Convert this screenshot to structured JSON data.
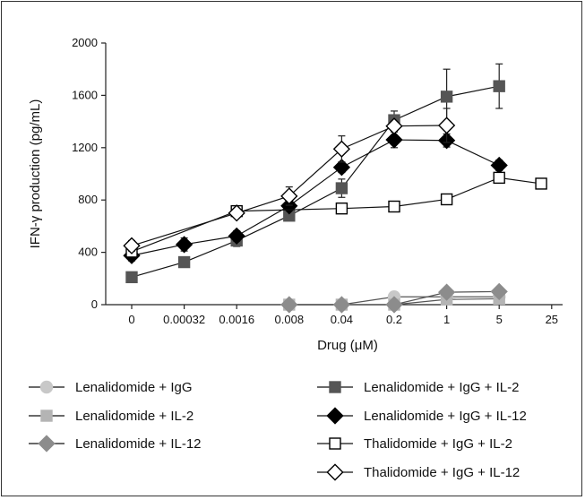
{
  "chart_data": {
    "type": "line",
    "xlabel": "Drug (μM)",
    "ylabel": "IFN-γ production (pg/mL)",
    "categories": [
      "0",
      "0.00032",
      "0.0016",
      "0.008",
      "0.04",
      "0.2",
      "1",
      "5",
      "25"
    ],
    "ylim": [
      0,
      2000
    ],
    "yticks": [
      0,
      400,
      800,
      1200,
      1600,
      2000
    ],
    "grid": false,
    "legend_position": "bottom",
    "series": [
      {
        "name": "Lenalidomide + IgG",
        "marker": "circle",
        "color": "#c8c8c8",
        "stroke": "#c8c8c8",
        "line": "#555555",
        "x": [
          3,
          4,
          5,
          6,
          7
        ],
        "y": [
          0,
          0,
          60,
          60,
          60
        ]
      },
      {
        "name": "Lenalidomide + IL-2",
        "marker": "square",
        "color": "#b4b4b4",
        "stroke": "#b4b4b4",
        "line": "#555555",
        "x": [
          3,
          4,
          5,
          6,
          7
        ],
        "y": [
          0,
          0,
          0,
          40,
          45
        ]
      },
      {
        "name": "Lenalidomide + IL-12",
        "marker": "diamond",
        "color": "#8c8c8c",
        "stroke": "#8c8c8c",
        "line": "#555555",
        "x": [
          3,
          4,
          5,
          6,
          7
        ],
        "y": [
          0,
          0,
          0,
          95,
          100
        ]
      },
      {
        "name": "Lenalidomide + IgG + IL-2",
        "marker": "square",
        "color": "#555555",
        "stroke": "#555555",
        "line": "#111111",
        "x": [
          0,
          1,
          2,
          3,
          4,
          5,
          6,
          7
        ],
        "y": [
          210,
          325,
          490,
          680,
          890,
          1410,
          1590,
          1670
        ],
        "err": [
          0,
          0,
          45,
          0,
          70,
          70,
          210,
          170
        ]
      },
      {
        "name": "Lenalidomide + IgG + IL-12",
        "marker": "diamond",
        "color": "#000000",
        "stroke": "#000000",
        "line": "#111111",
        "x": [
          0,
          1,
          2,
          3,
          4,
          5,
          6,
          7
        ],
        "y": [
          375,
          460,
          525,
          755,
          1050,
          1260,
          1255,
          1065
        ],
        "err": [
          40,
          50,
          40,
          0,
          40,
          60,
          50,
          40
        ]
      },
      {
        "name": "Thalidomide + IgG + IL-2",
        "marker": "square",
        "color": "#ffffff",
        "stroke": "#000000",
        "line": "#111111",
        "x": [
          0,
          2,
          4,
          5,
          6,
          7,
          7.8
        ],
        "y": [
          405,
          715,
          735,
          750,
          805,
          970,
          925
        ],
        "err": [
          0,
          0,
          0,
          40,
          0,
          0,
          0
        ]
      },
      {
        "name": "Thalidomide + IgG + IL-12",
        "marker": "diamond",
        "color": "#ffffff",
        "stroke": "#000000",
        "line": "#111111",
        "x": [
          0,
          2,
          3,
          4,
          5,
          6
        ],
        "y": [
          450,
          700,
          830,
          1190,
          1365,
          1370
        ],
        "err": [
          40,
          0,
          70,
          100,
          0,
          130
        ]
      }
    ]
  }
}
